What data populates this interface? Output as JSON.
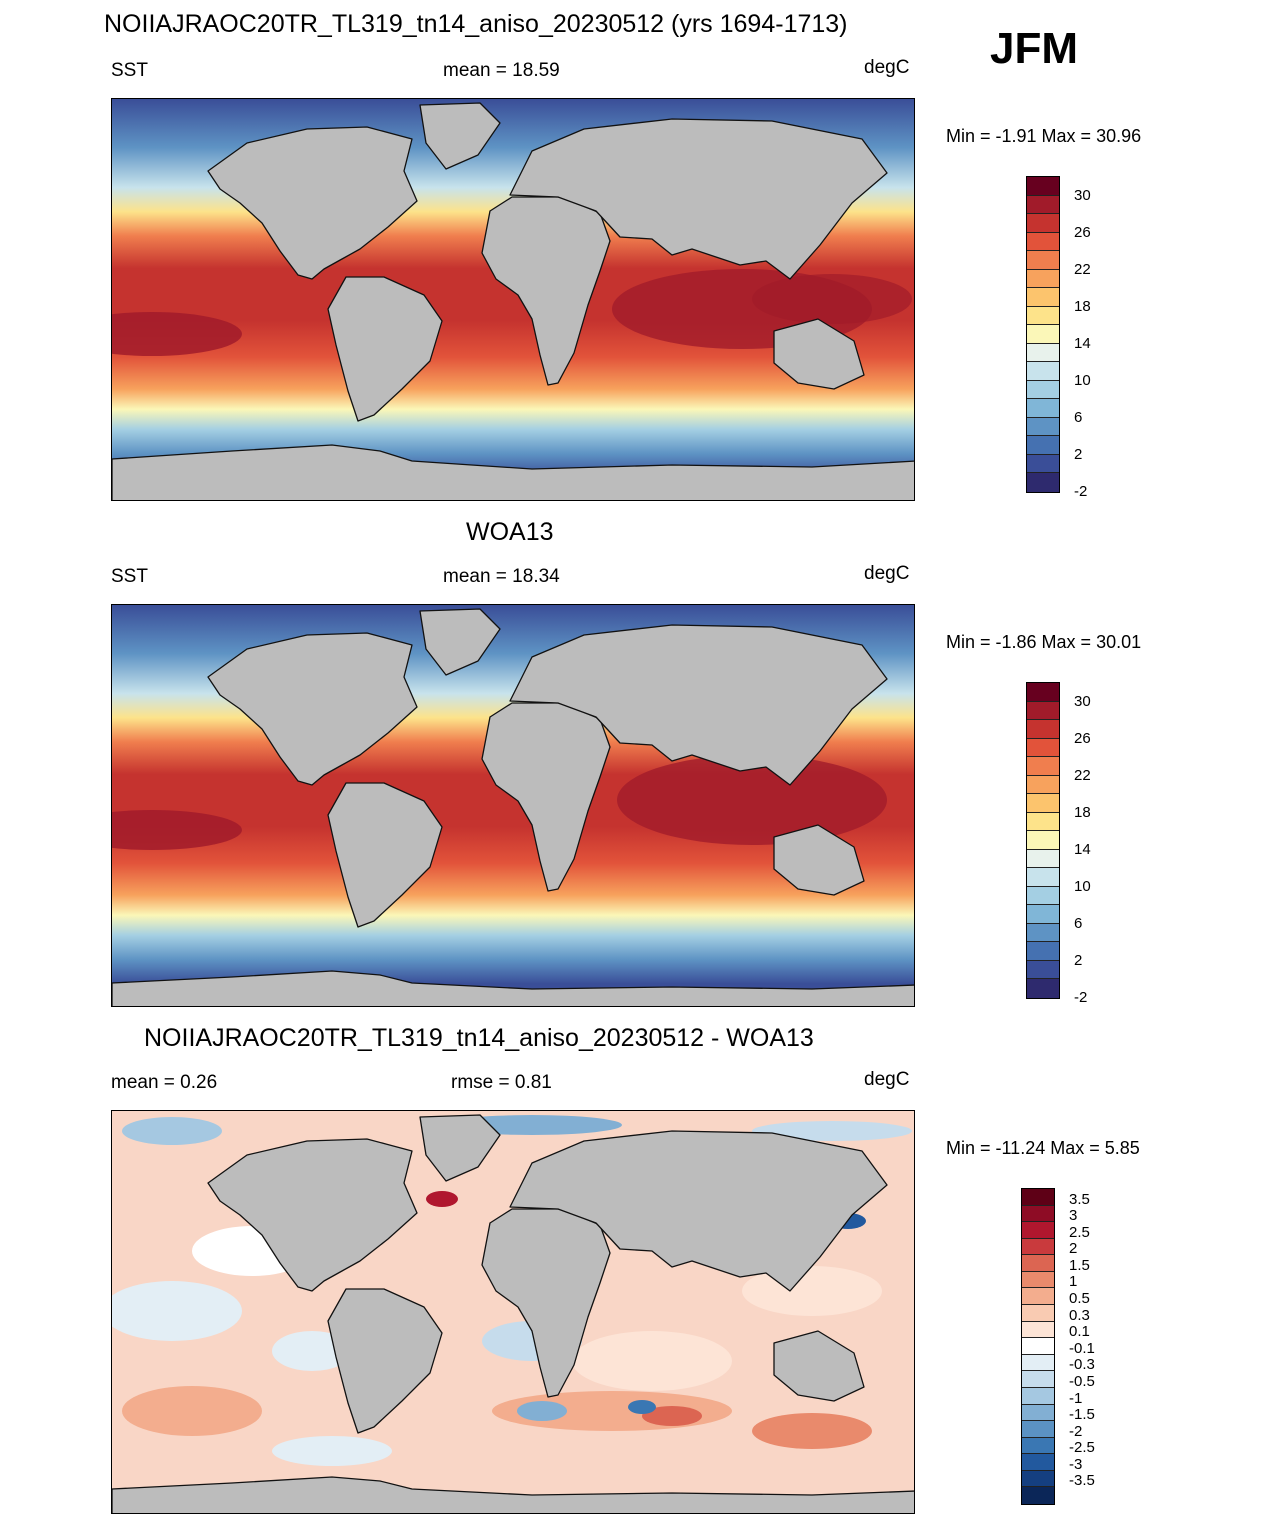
{
  "season": "JFM",
  "panels": [
    {
      "id": "model",
      "title": "NOIIAJRAOC20TR_TL319_tn14_aniso_20230512 (yrs 1694-1713)",
      "left_label": "SST",
      "center_label": "mean =  18.59",
      "units": "degC",
      "minmax": "Min =  -1.91 Max =  30.96",
      "colorbar": {
        "colors": [
          "#67001f",
          "#a11b2a",
          "#c5332f",
          "#e2533a",
          "#f07e4e",
          "#f7a25d",
          "#fcc46d",
          "#fde38a",
          "#fbf7b8",
          "#e8f2ec",
          "#c8e3ec",
          "#a4cfe3",
          "#80b6d7",
          "#5e93c4",
          "#4571b1",
          "#3a4e98",
          "#2e2a6e"
        ],
        "ticks": [
          "30",
          "26",
          "22",
          "18",
          "14",
          "10",
          "6",
          "2",
          "-2"
        ]
      }
    },
    {
      "id": "obs",
      "title": "WOA13",
      "left_label": "SST",
      "center_label": "mean =  18.34",
      "units": "degC",
      "minmax": "Min =  -1.86 Max =  30.01",
      "colorbar": {
        "colors": [
          "#67001f",
          "#a11b2a",
          "#c5332f",
          "#e2533a",
          "#f07e4e",
          "#f7a25d",
          "#fcc46d",
          "#fde38a",
          "#fbf7b8",
          "#e8f2ec",
          "#c8e3ec",
          "#a4cfe3",
          "#80b6d7",
          "#5e93c4",
          "#4571b1",
          "#3a4e98",
          "#2e2a6e"
        ],
        "ticks": [
          "30",
          "26",
          "22",
          "18",
          "14",
          "10",
          "6",
          "2",
          "-2"
        ]
      }
    },
    {
      "id": "diff",
      "title": "NOIIAJRAOC20TR_TL319_tn14_aniso_20230512 - WOA13",
      "left_label": "mean =   0.26",
      "center_label": "rmse =   0.81",
      "units": "degC",
      "minmax": "Min = -11.24 Max =    5.85",
      "colorbar": {
        "colors": [
          "#5e0016",
          "#8e0c25",
          "#b0172e",
          "#c93a3d",
          "#dc6552",
          "#e98a6c",
          "#f3ad8e",
          "#f9cbb2",
          "#fde4d6",
          "#ffffff",
          "#e3eef5",
          "#c6dcec",
          "#a5c8e1",
          "#82afd3",
          "#5b92c3",
          "#3a77b3",
          "#22599e",
          "#153f80",
          "#0b2658"
        ],
        "ticks": [
          "3.5",
          "3",
          "2.5",
          "2",
          "1.5",
          "1",
          "0.5",
          "0.3",
          "0.1",
          "-0.1",
          "-0.3",
          "-0.5",
          "-1",
          "-1.5",
          "-2",
          "-2.5",
          "-3",
          "-3.5"
        ]
      }
    }
  ]
}
